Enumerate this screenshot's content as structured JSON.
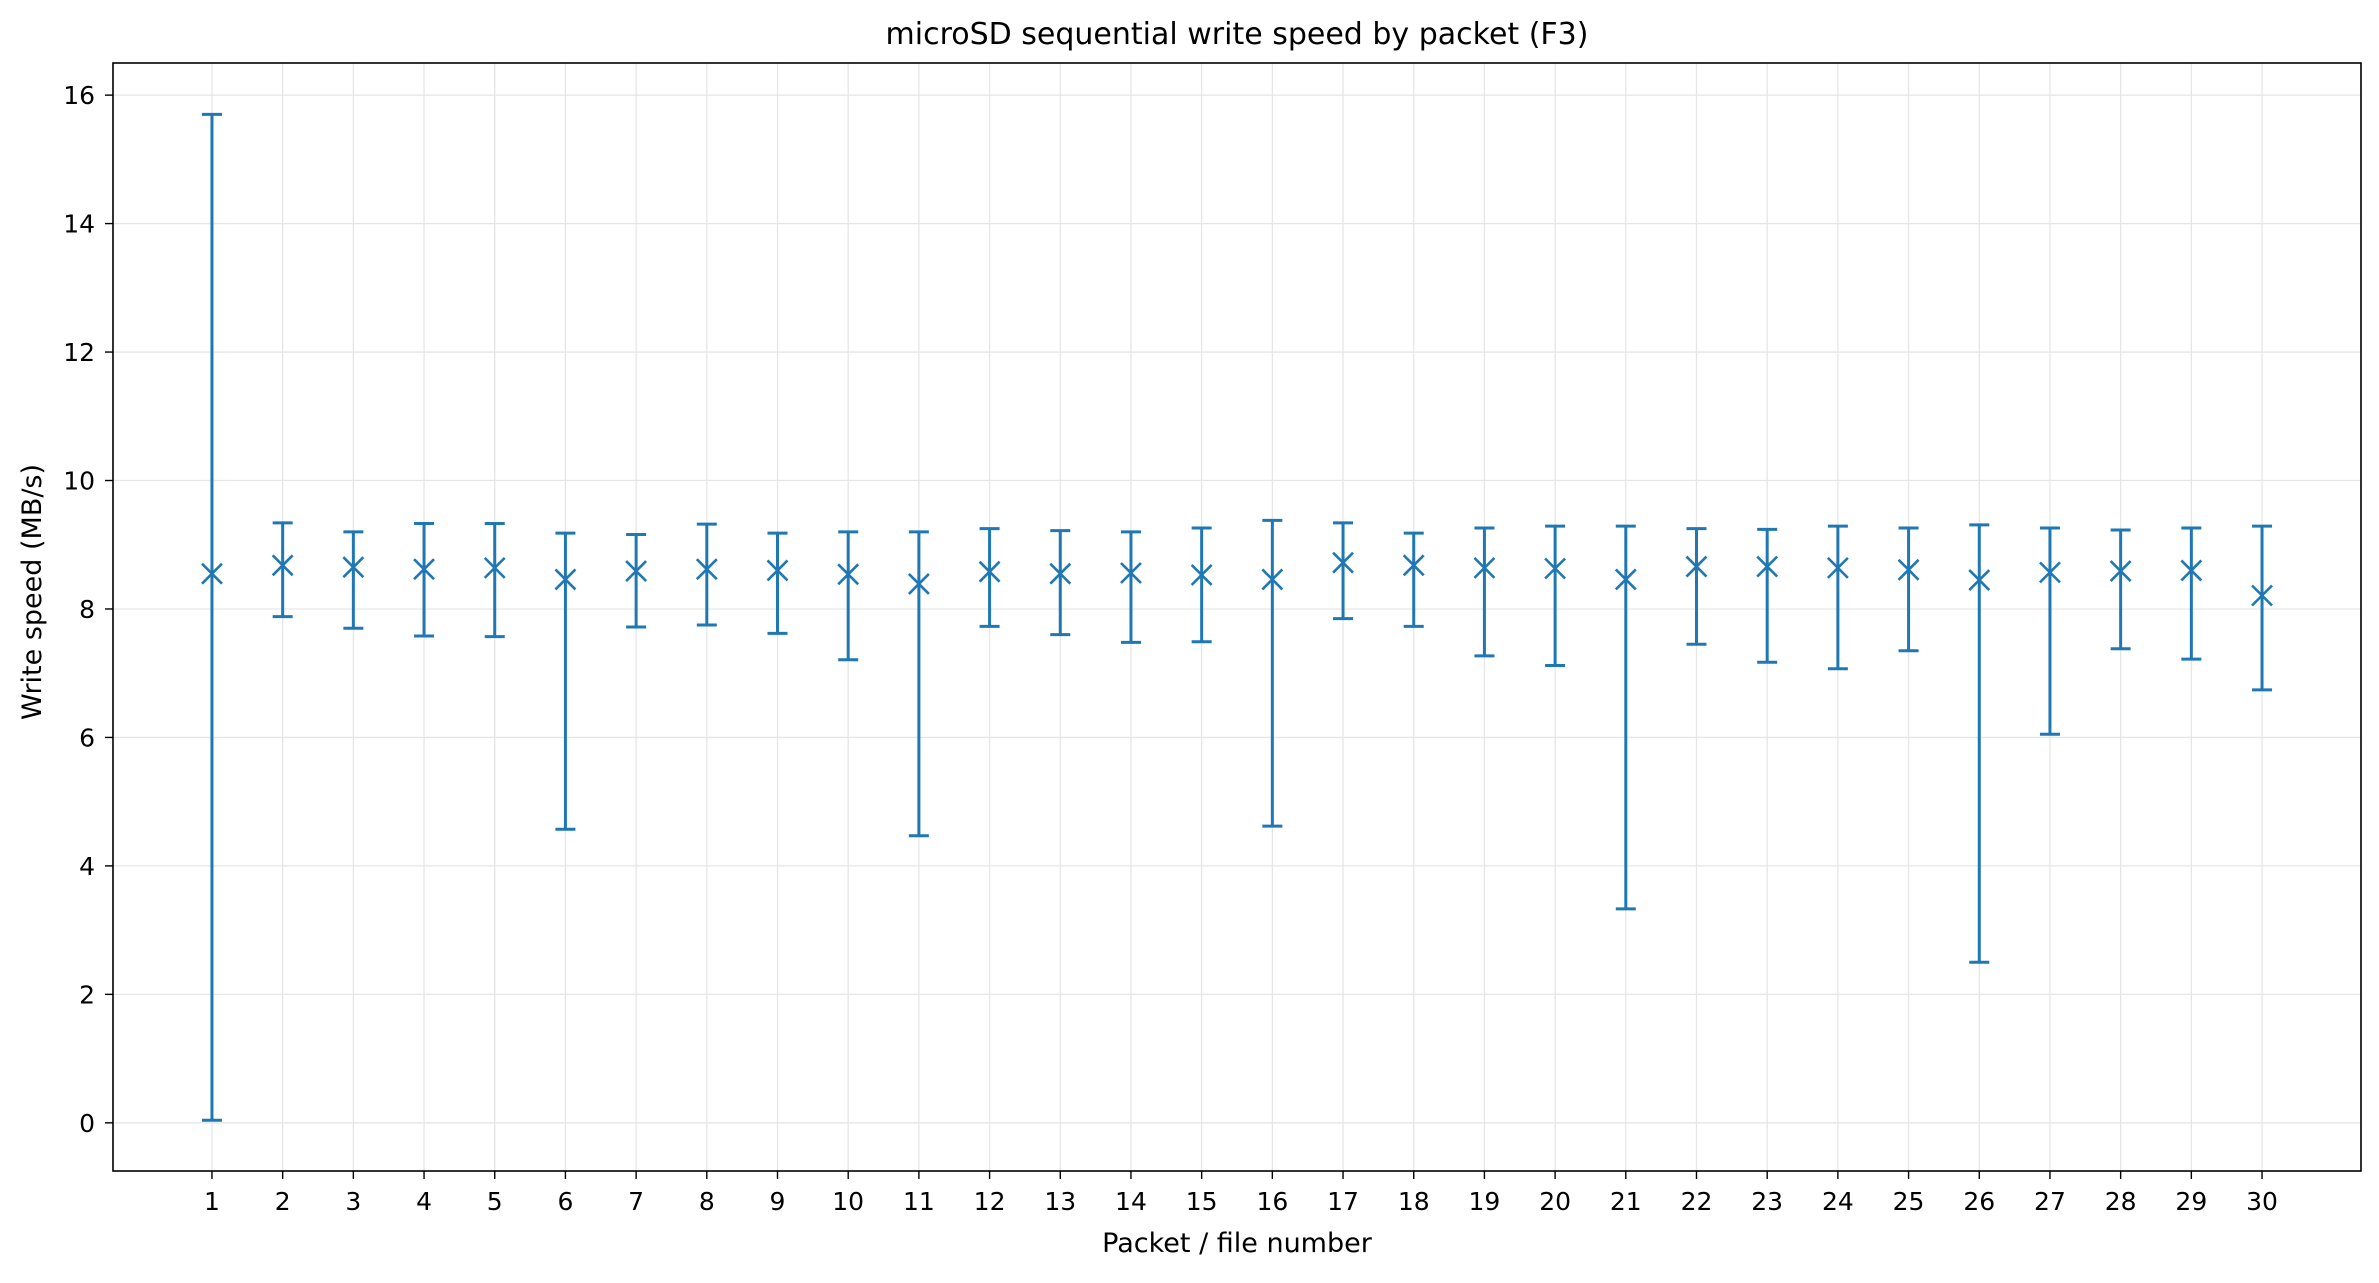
{
  "chart_data": {
    "type": "errorbar",
    "title": "microSD sequential write speed by packet (F3)",
    "xlabel": "Packet / file number",
    "ylabel": "Write speed (MB/s)",
    "xlim": [
      -0.4,
      31.4
    ],
    "ylim": [
      -0.75,
      16.5
    ],
    "x_ticks": [
      1,
      2,
      3,
      4,
      5,
      6,
      7,
      8,
      9,
      10,
      11,
      12,
      13,
      14,
      15,
      16,
      17,
      18,
      19,
      20,
      21,
      22,
      23,
      24,
      25,
      26,
      27,
      28,
      29,
      30
    ],
    "y_ticks": [
      0,
      2,
      4,
      6,
      8,
      10,
      12,
      14,
      16
    ],
    "grid": true,
    "legend": "none",
    "marker": "x",
    "color": "#1f77b4",
    "series": [
      {
        "x": [
          1,
          2,
          3,
          4,
          5,
          6,
          7,
          8,
          9,
          10,
          11,
          12,
          13,
          14,
          15,
          16,
          17,
          18,
          19,
          20,
          21,
          22,
          23,
          24,
          25,
          26,
          27,
          28,
          29,
          30
        ],
        "y": [
          8.55,
          8.68,
          8.65,
          8.62,
          8.64,
          8.46,
          8.59,
          8.62,
          8.6,
          8.54,
          8.39,
          8.58,
          8.55,
          8.56,
          8.53,
          8.46,
          8.72,
          8.68,
          8.64,
          8.63,
          8.46,
          8.66,
          8.66,
          8.64,
          8.61,
          8.45,
          8.57,
          8.59,
          8.6,
          8.21
        ],
        "y_min": [
          0.04,
          7.88,
          7.7,
          7.58,
          7.57,
          4.57,
          7.72,
          7.75,
          7.62,
          7.21,
          4.47,
          7.73,
          7.6,
          7.48,
          7.49,
          4.62,
          7.85,
          7.73,
          7.27,
          7.12,
          3.33,
          7.45,
          7.17,
          7.07,
          7.35,
          2.5,
          6.05,
          7.38,
          7.22,
          6.74
        ],
        "y_max": [
          15.7,
          9.34,
          9.2,
          9.33,
          9.33,
          9.18,
          9.16,
          9.32,
          9.18,
          9.2,
          9.2,
          9.25,
          9.22,
          9.2,
          9.26,
          9.38,
          9.34,
          9.18,
          9.26,
          9.29,
          9.29,
          9.25,
          9.24,
          9.29,
          9.26,
          9.31,
          9.26,
          9.23,
          9.26,
          9.29
        ]
      }
    ]
  }
}
